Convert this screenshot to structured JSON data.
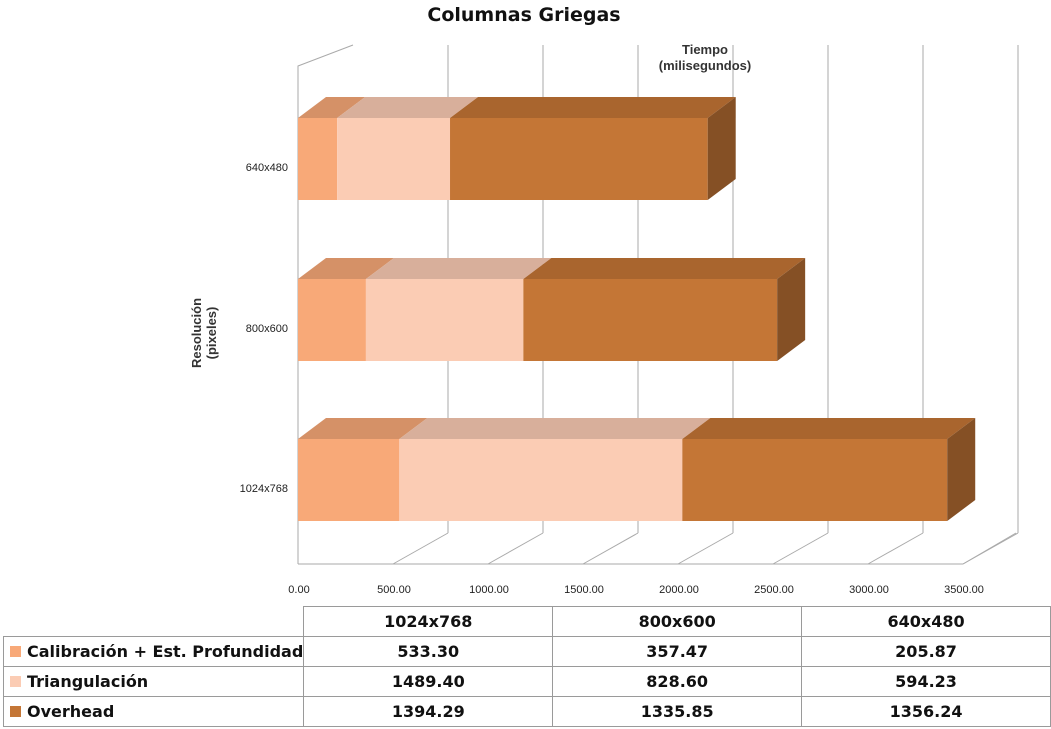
{
  "chart_data": {
    "type": "bar",
    "orientation": "horizontal",
    "stacked": true,
    "style": "3d",
    "title": "Columnas Griegas",
    "xlabel": "Tiempo (milisegundos)",
    "ylabel": "Resolución (pixeles)",
    "xlim": [
      0,
      3500
    ],
    "xticks": [
      "0.00",
      "500.00",
      "1000.00",
      "1500.00",
      "2000.00",
      "2500.00",
      "3000.00",
      "3500.00"
    ],
    "categories": [
      "1024x768",
      "800x600",
      "640x480"
    ],
    "series": [
      {
        "name": "Calibración + Est. Profundidad",
        "color": "#F8A978",
        "values": [
          533.3,
          357.47,
          205.87
        ],
        "labels": [
          "533.30",
          "357.47",
          "205.87"
        ]
      },
      {
        "name": "Triangulación",
        "color": "#FBCCB4",
        "values": [
          1489.4,
          828.6,
          594.23
        ],
        "labels": [
          "1489.40",
          "828.60",
          "594.23"
        ]
      },
      {
        "name": "Overhead",
        "color": "#C47636",
        "values": [
          1394.29,
          1335.85,
          1356.24
        ],
        "labels": [
          "1394.29",
          "1335.85",
          "1356.24"
        ]
      }
    ],
    "grid": true,
    "legend": "data-table-below"
  }
}
